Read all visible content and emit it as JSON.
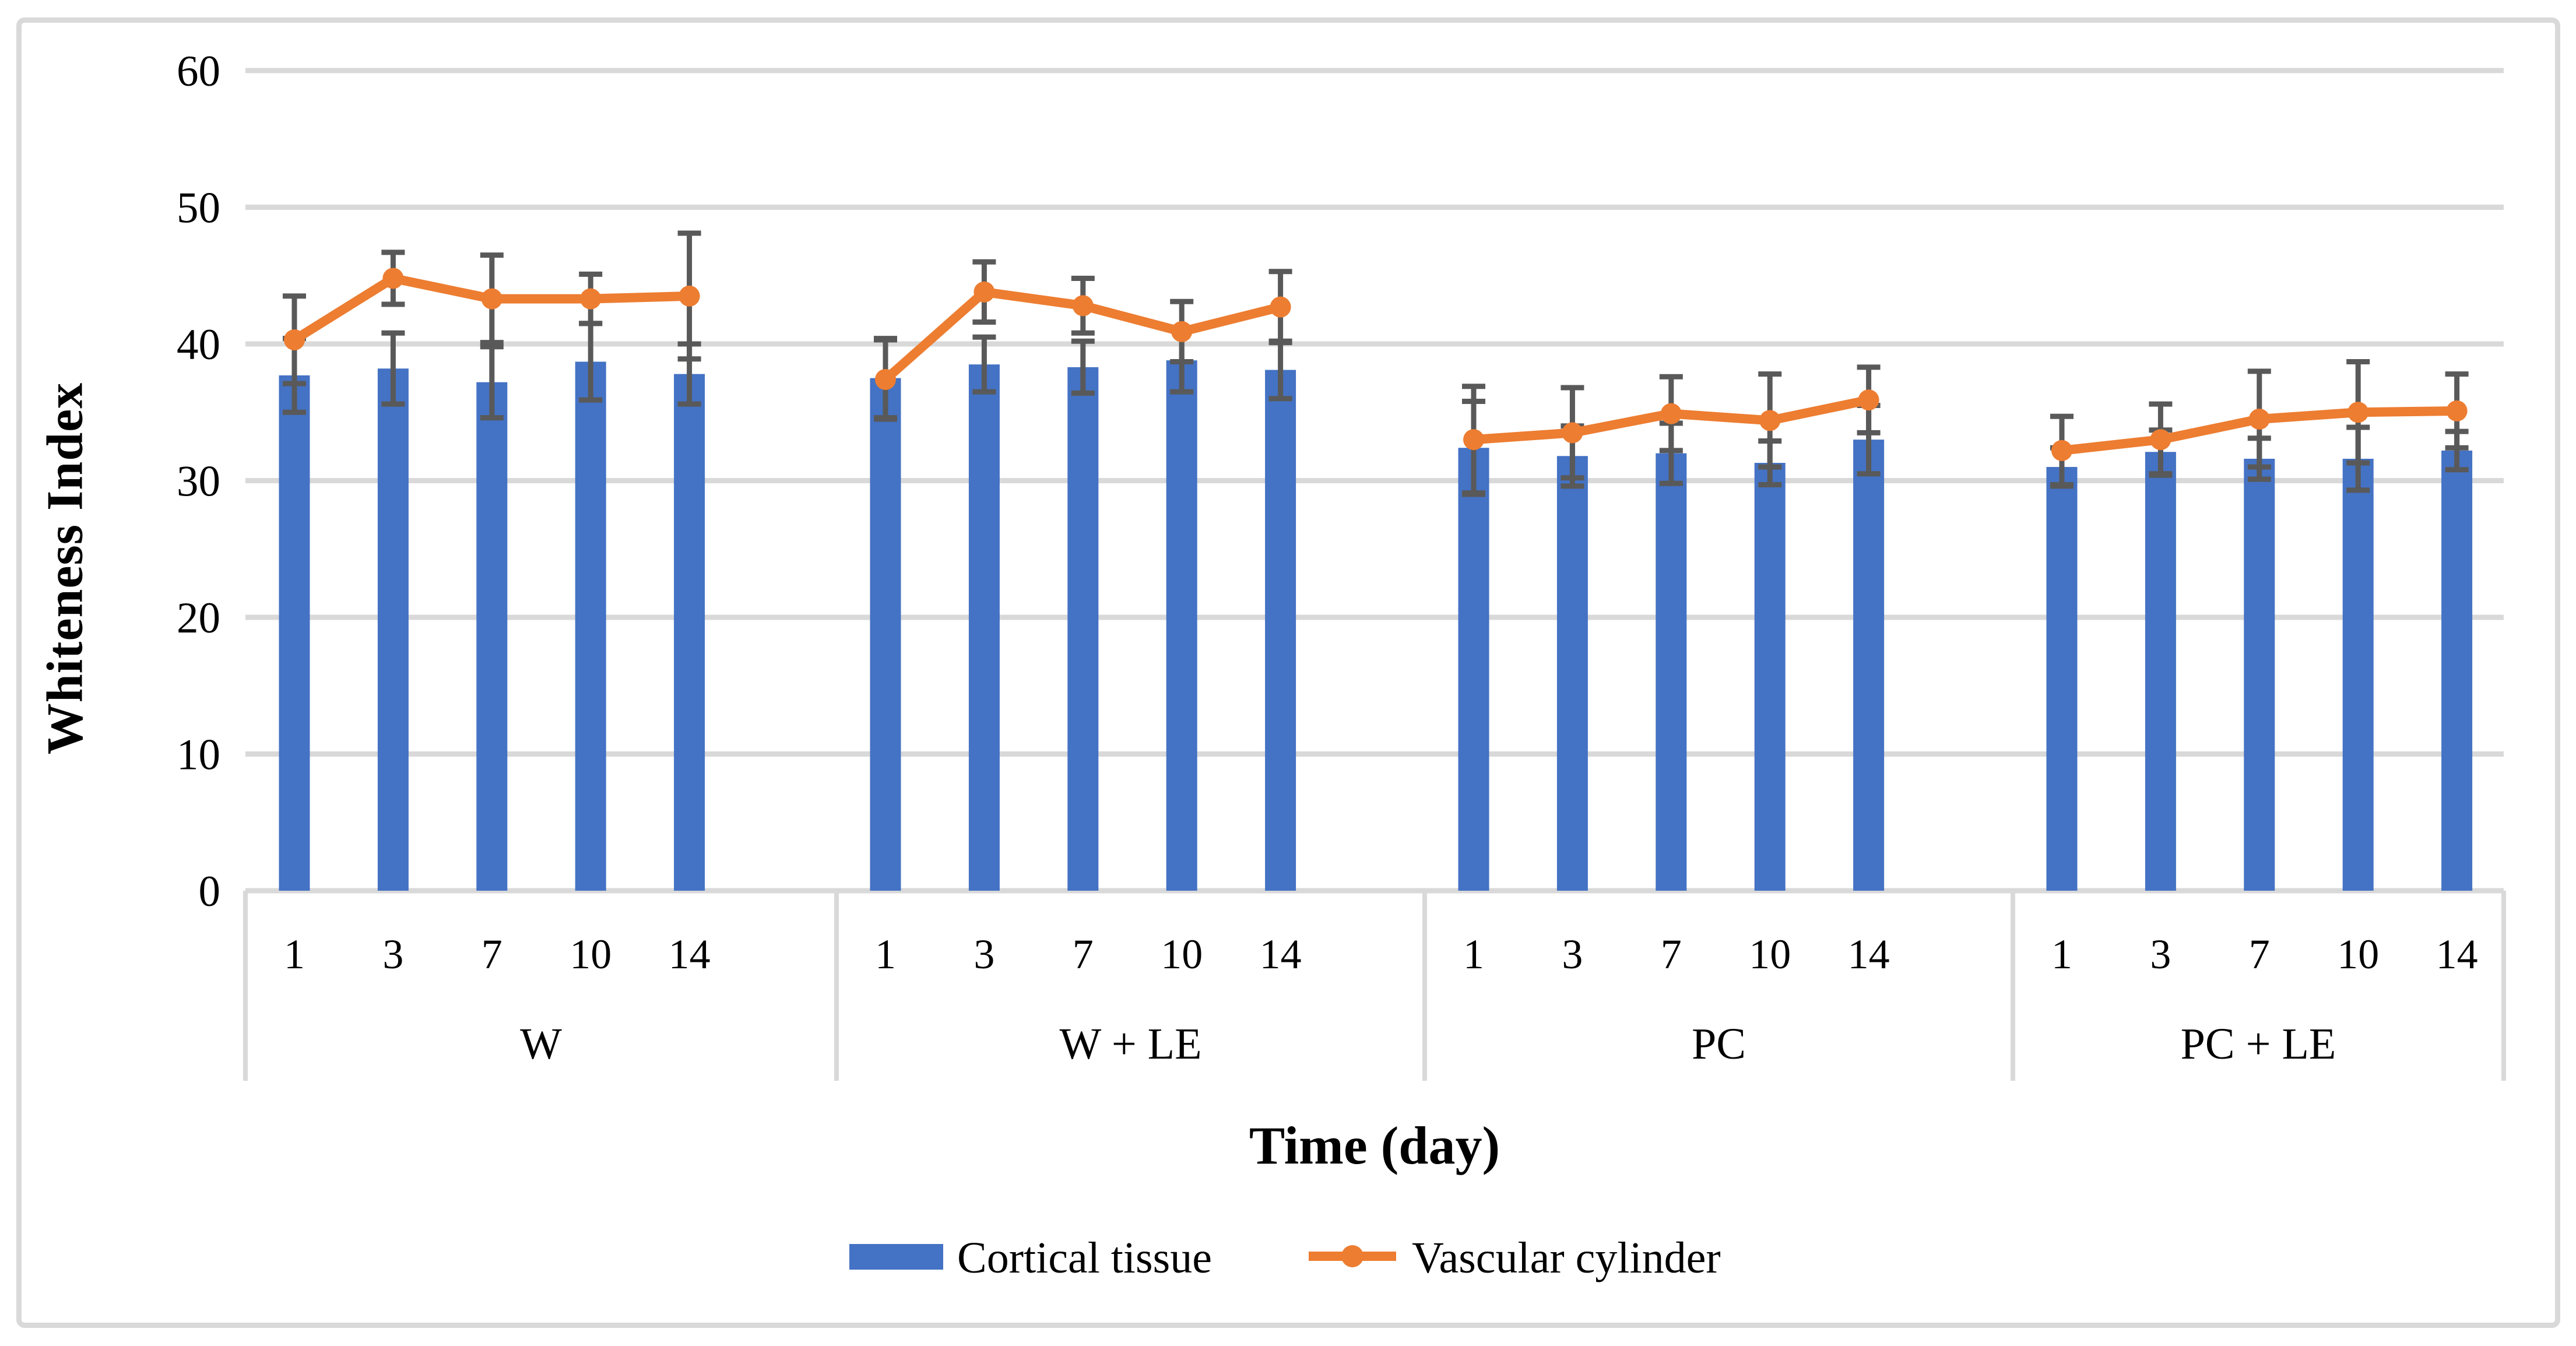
{
  "figure": {
    "y_axis_title": "Whiteness Index",
    "x_axis_title": "Time (day)",
    "legend": {
      "cortical_label": "Cortical tissue",
      "vascular_label": "Vascular cylinder"
    }
  },
  "colors": {
    "bar": "#4472C4",
    "line": "#ED7D31",
    "error": "#595959",
    "grid": "#D9D9D9",
    "frame": "#D9D9D9",
    "text": "#000000",
    "background": "#FFFFFF"
  },
  "chart_data": {
    "type": "bar",
    "subtype": "grouped bar with overlaid line series and error bars",
    "title": "",
    "xlabel": "Time (day)",
    "ylabel": "Whiteness Index",
    "ylim": [
      0,
      60
    ],
    "y_ticks": [
      0,
      10,
      20,
      30,
      40,
      50,
      60
    ],
    "grid": "horizontal",
    "legend_position": "bottom",
    "groups": [
      "W",
      "W + LE",
      "PC",
      "PC + LE"
    ],
    "days": [
      "1",
      "3",
      "7",
      "10",
      "14"
    ],
    "series": [
      {
        "name": "Cortical tissue",
        "type": "bar",
        "color": "#4472C4",
        "values": [
          [
            37.7,
            38.2,
            37.2,
            38.7,
            37.8
          ],
          [
            37.5,
            38.5,
            38.3,
            38.8,
            38.1
          ],
          [
            32.4,
            31.8,
            32.0,
            31.3,
            33.0
          ],
          [
            31.0,
            32.1,
            31.6,
            31.6,
            32.2
          ]
        ],
        "errors": [
          [
            2.7,
            2.6,
            2.6,
            2.8,
            2.2
          ],
          [
            2.9,
            2.0,
            1.9,
            2.3,
            2.1
          ],
          [
            3.4,
            2.2,
            2.2,
            1.6,
            2.5
          ],
          [
            1.4,
            1.6,
            1.5,
            2.3,
            1.4
          ]
        ]
      },
      {
        "name": "Vascular cylinder",
        "type": "line",
        "color": "#ED7D31",
        "values": [
          [
            40.3,
            44.8,
            43.3,
            43.3,
            43.5
          ],
          [
            37.4,
            43.8,
            42.8,
            40.9,
            42.7
          ],
          [
            33.0,
            33.5,
            34.9,
            34.4,
            35.9
          ],
          [
            32.2,
            33.0,
            34.5,
            35.0,
            35.1
          ]
        ],
        "errors": [
          [
            3.2,
            1.9,
            3.2,
            1.8,
            4.6
          ],
          [
            2.9,
            2.2,
            2.0,
            2.2,
            2.6
          ],
          [
            3.9,
            3.3,
            2.7,
            3.4,
            2.4
          ],
          [
            2.5,
            2.6,
            3.5,
            3.7,
            2.7
          ]
        ]
      }
    ]
  }
}
